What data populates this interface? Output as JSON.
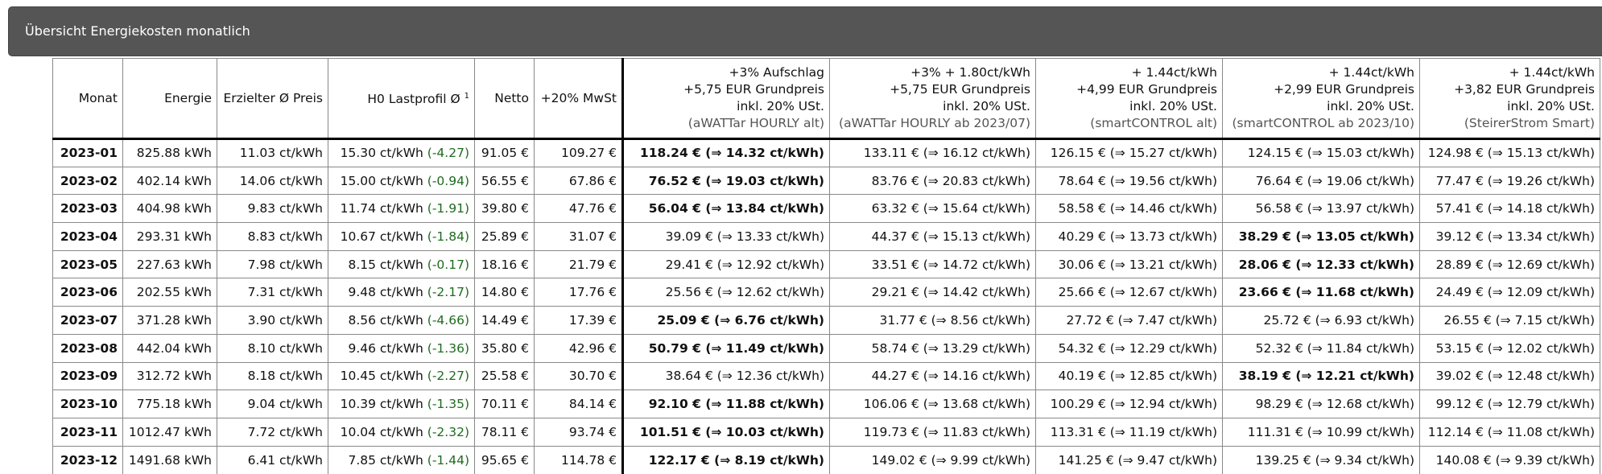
{
  "panel": {
    "title": "Übersicht Energiekosten monatlich"
  },
  "columns": {
    "monat": "Monat",
    "energie": "Energie",
    "preis": "Erzielter Ø Preis",
    "h0": "H0 Lastprofil Ø",
    "h0_sup": "1",
    "netto": "Netto",
    "mwst": "+20% MwSt",
    "tariffs": [
      {
        "line1": "+3% Aufschlag",
        "line2": "+5,75 EUR Grundpreis",
        "line3": "inkl. 20% USt.",
        "source": "(aWATTar HOURLY alt)"
      },
      {
        "line1": "+3% + 1.80ct/kWh",
        "line2": "+5,75 EUR Grundpreis",
        "line3": "inkl. 20% USt.",
        "source": "(aWATTar HOURLY ab 2023/07)"
      },
      {
        "line1": "+ 1.44ct/kWh",
        "line2": "+4,99 EUR Grundpreis",
        "line3": "inkl. 20% USt.",
        "source": "(smartCONTROL alt)"
      },
      {
        "line1": "+ 1.44ct/kWh",
        "line2": "+2,99 EUR Grundpreis",
        "line3": "inkl. 20% USt.",
        "source": "(smartCONTROL ab 2023/10)"
      },
      {
        "line1": "+ 1.44ct/kWh",
        "line2": "+3,82 EUR Grundpreis",
        "line3": "inkl. 20% USt.",
        "source": "(SteirerStrom Smart)"
      }
    ]
  },
  "rows": [
    {
      "month": "2023-01",
      "energy": "825.88 kWh",
      "price": "11.03 ct/kWh",
      "h0": "15.30 ct/kWh",
      "h0_diff": "(-4.27)",
      "netto": "91.05 €",
      "mwst": "109.27 €",
      "tariffs": [
        "118.24 € (⇒ 14.32 ct/kWh)",
        "133.11 € (⇒ 16.12 ct/kWh)",
        "126.15 € (⇒ 15.27 ct/kWh)",
        "124.15 € (⇒ 15.03 ct/kWh)",
        "124.98 € (⇒ 15.13 ct/kWh)"
      ],
      "best": 0
    },
    {
      "month": "2023-02",
      "energy": "402.14 kWh",
      "price": "14.06 ct/kWh",
      "h0": "15.00 ct/kWh",
      "h0_diff": "(-0.94)",
      "netto": "56.55 €",
      "mwst": "67.86 €",
      "tariffs": [
        "76.52 € (⇒ 19.03 ct/kWh)",
        "83.76 € (⇒ 20.83 ct/kWh)",
        "78.64 € (⇒ 19.56 ct/kWh)",
        "76.64 € (⇒ 19.06 ct/kWh)",
        "77.47 € (⇒ 19.26 ct/kWh)"
      ],
      "best": 0
    },
    {
      "month": "2023-03",
      "energy": "404.98 kWh",
      "price": "9.83 ct/kWh",
      "h0": "11.74 ct/kWh",
      "h0_diff": "(-1.91)",
      "netto": "39.80 €",
      "mwst": "47.76 €",
      "tariffs": [
        "56.04 € (⇒ 13.84 ct/kWh)",
        "63.32 € (⇒ 15.64 ct/kWh)",
        "58.58 € (⇒ 14.46 ct/kWh)",
        "56.58 € (⇒ 13.97 ct/kWh)",
        "57.41 € (⇒ 14.18 ct/kWh)"
      ],
      "best": 0
    },
    {
      "month": "2023-04",
      "energy": "293.31 kWh",
      "price": "8.83 ct/kWh",
      "h0": "10.67 ct/kWh",
      "h0_diff": "(-1.84)",
      "netto": "25.89 €",
      "mwst": "31.07 €",
      "tariffs": [
        "39.09 € (⇒ 13.33 ct/kWh)",
        "44.37 € (⇒ 15.13 ct/kWh)",
        "40.29 € (⇒ 13.73 ct/kWh)",
        "38.29 € (⇒ 13.05 ct/kWh)",
        "39.12 € (⇒ 13.34 ct/kWh)"
      ],
      "best": 3
    },
    {
      "month": "2023-05",
      "energy": "227.63 kWh",
      "price": "7.98 ct/kWh",
      "h0": "8.15 ct/kWh",
      "h0_diff": "(-0.17)",
      "netto": "18.16 €",
      "mwst": "21.79 €",
      "tariffs": [
        "29.41 € (⇒ 12.92 ct/kWh)",
        "33.51 € (⇒ 14.72 ct/kWh)",
        "30.06 € (⇒ 13.21 ct/kWh)",
        "28.06 € (⇒ 12.33 ct/kWh)",
        "28.89 € (⇒ 12.69 ct/kWh)"
      ],
      "best": 3
    },
    {
      "month": "2023-06",
      "energy": "202.55 kWh",
      "price": "7.31 ct/kWh",
      "h0": "9.48 ct/kWh",
      "h0_diff": "(-2.17)",
      "netto": "14.80 €",
      "mwst": "17.76 €",
      "tariffs": [
        "25.56 € (⇒ 12.62 ct/kWh)",
        "29.21 € (⇒ 14.42 ct/kWh)",
        "25.66 € (⇒ 12.67 ct/kWh)",
        "23.66 € (⇒ 11.68 ct/kWh)",
        "24.49 € (⇒ 12.09 ct/kWh)"
      ],
      "best": 3
    },
    {
      "month": "2023-07",
      "energy": "371.28 kWh",
      "price": "3.90 ct/kWh",
      "h0": "8.56 ct/kWh",
      "h0_diff": "(-4.66)",
      "netto": "14.49 €",
      "mwst": "17.39 €",
      "tariffs": [
        "25.09 € (⇒ 6.76 ct/kWh)",
        "31.77 € (⇒ 8.56 ct/kWh)",
        "27.72 € (⇒ 7.47 ct/kWh)",
        "25.72 € (⇒ 6.93 ct/kWh)",
        "26.55 € (⇒ 7.15 ct/kWh)"
      ],
      "best": 0
    },
    {
      "month": "2023-08",
      "energy": "442.04 kWh",
      "price": "8.10 ct/kWh",
      "h0": "9.46 ct/kWh",
      "h0_diff": "(-1.36)",
      "netto": "35.80 €",
      "mwst": "42.96 €",
      "tariffs": [
        "50.79 € (⇒ 11.49 ct/kWh)",
        "58.74 € (⇒ 13.29 ct/kWh)",
        "54.32 € (⇒ 12.29 ct/kWh)",
        "52.32 € (⇒ 11.84 ct/kWh)",
        "53.15 € (⇒ 12.02 ct/kWh)"
      ],
      "best": 0
    },
    {
      "month": "2023-09",
      "energy": "312.72 kWh",
      "price": "8.18 ct/kWh",
      "h0": "10.45 ct/kWh",
      "h0_diff": "(-2.27)",
      "netto": "25.58 €",
      "mwst": "30.70 €",
      "tariffs": [
        "38.64 € (⇒ 12.36 ct/kWh)",
        "44.27 € (⇒ 14.16 ct/kWh)",
        "40.19 € (⇒ 12.85 ct/kWh)",
        "38.19 € (⇒ 12.21 ct/kWh)",
        "39.02 € (⇒ 12.48 ct/kWh)"
      ],
      "best": 3
    },
    {
      "month": "2023-10",
      "energy": "775.18 kWh",
      "price": "9.04 ct/kWh",
      "h0": "10.39 ct/kWh",
      "h0_diff": "(-1.35)",
      "netto": "70.11 €",
      "mwst": "84.14 €",
      "tariffs": [
        "92.10 € (⇒ 11.88 ct/kWh)",
        "106.06 € (⇒ 13.68 ct/kWh)",
        "100.29 € (⇒ 12.94 ct/kWh)",
        "98.29 € (⇒ 12.68 ct/kWh)",
        "99.12 € (⇒ 12.79 ct/kWh)"
      ],
      "best": 0
    },
    {
      "month": "2023-11",
      "energy": "1012.47 kWh",
      "price": "7.72 ct/kWh",
      "h0": "10.04 ct/kWh",
      "h0_diff": "(-2.32)",
      "netto": "78.11 €",
      "mwst": "93.74 €",
      "tariffs": [
        "101.51 € (⇒ 10.03 ct/kWh)",
        "119.73 € (⇒ 11.83 ct/kWh)",
        "113.31 € (⇒ 11.19 ct/kWh)",
        "111.31 € (⇒ 10.99 ct/kWh)",
        "112.14 € (⇒ 11.08 ct/kWh)"
      ],
      "best": 0
    },
    {
      "month": "2023-12",
      "energy": "1491.68 kWh",
      "price": "6.41 ct/kWh",
      "h0": "7.85 ct/kWh",
      "h0_diff": "(-1.44)",
      "netto": "95.65 €",
      "mwst": "114.78 €",
      "tariffs": [
        "122.17 € (⇒ 8.19 ct/kWh)",
        "149.02 € (⇒ 9.99 ct/kWh)",
        "141.25 € (⇒ 9.47 ct/kWh)",
        "139.25 € (⇒ 9.34 ct/kWh)",
        "140.08 € (⇒ 9.39 ct/kWh)"
      ],
      "best": 0
    }
  ]
}
